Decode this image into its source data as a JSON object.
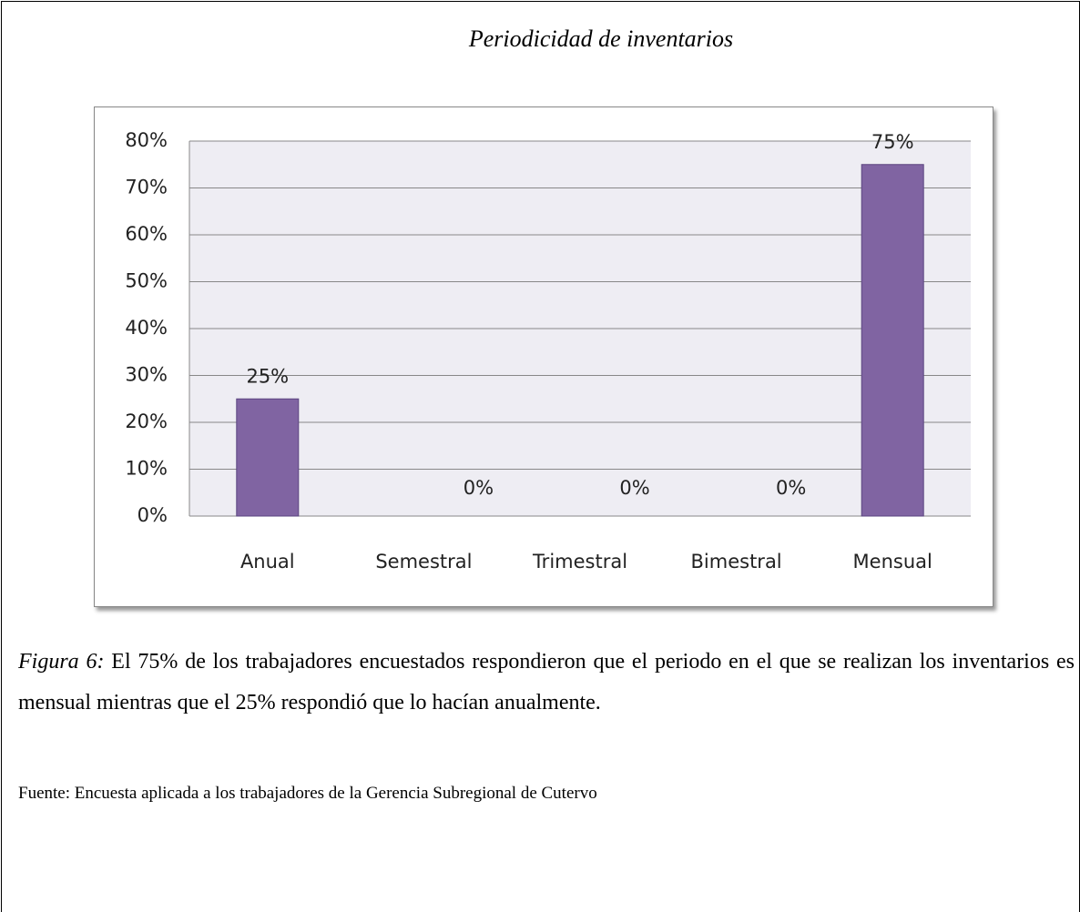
{
  "chart_data": {
    "type": "bar",
    "title": "Periodicidad de inventarios",
    "categories": [
      "Anual",
      "Semestral",
      "Trimestral",
      "Bimestral",
      "Mensual"
    ],
    "values": [
      25,
      0,
      0,
      0,
      75
    ],
    "value_labels": [
      "25%",
      "0%",
      "0%",
      "0%",
      "75%"
    ],
    "color": "#8064a2",
    "ylim": [
      0,
      80
    ],
    "yticks": [
      {
        "value": 0,
        "label": "0%"
      },
      {
        "value": 10,
        "label": "10%"
      },
      {
        "value": 20,
        "label": "20%"
      },
      {
        "value": 30,
        "label": "30%"
      },
      {
        "value": 40,
        "label": "40%"
      },
      {
        "value": 50,
        "label": "50%"
      },
      {
        "value": 60,
        "label": "60%"
      },
      {
        "value": 70,
        "label": "70%"
      },
      {
        "value": 80,
        "label": "80%"
      }
    ],
    "grid": true
  },
  "caption": {
    "label": "Figura 6:",
    "text": "El 75% de los trabajadores encuestados respondieron que el periodo en el que se realizan los inventarios es mensual mientras que el 25% respondió que lo hacían anualmente."
  },
  "source": "Fuente: Encuesta aplicada a los trabajadores de la Gerencia Subregional de Cutervo"
}
